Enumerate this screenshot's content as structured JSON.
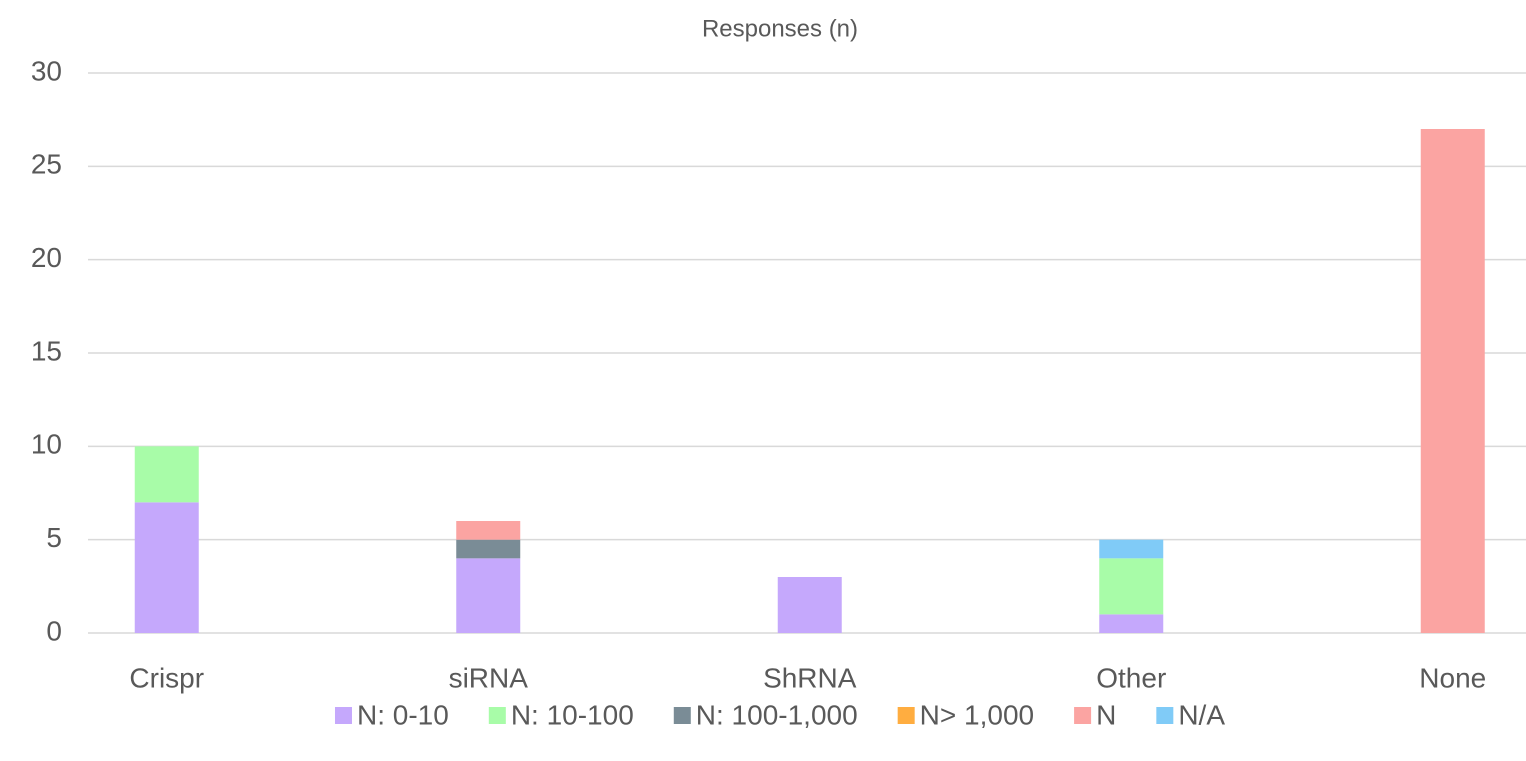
{
  "chart_data": {
    "type": "bar",
    "stacked": true,
    "title": "Responses (n)",
    "categories": [
      "Crispr",
      "siRNA",
      "ShRNA",
      "Other",
      "None"
    ],
    "series": [
      {
        "name": "N: 0-10",
        "color": "#c5a8fc",
        "values": [
          7,
          4,
          3,
          1,
          0
        ]
      },
      {
        "name": "N: 10-100",
        "color": "#a8fca8",
        "values": [
          3,
          0,
          0,
          3,
          0
        ]
      },
      {
        "name": "N: 100-1,000",
        "color": "#7a8c96",
        "values": [
          0,
          1,
          0,
          0,
          0
        ]
      },
      {
        "name": "N> 1,000",
        "color": "#ffad40",
        "values": [
          0,
          0,
          0,
          0,
          0
        ]
      },
      {
        "name": "N",
        "color": "#fba4a2",
        "values": [
          0,
          1,
          0,
          0,
          27
        ]
      },
      {
        "name": "N/A",
        "color": "#80cbf7",
        "values": [
          0,
          0,
          0,
          1,
          0
        ]
      }
    ],
    "ylim": [
      0,
      30
    ],
    "yticks": [
      0,
      5,
      10,
      15,
      20,
      25,
      30
    ],
    "grid": true,
    "legend": "bottom"
  }
}
